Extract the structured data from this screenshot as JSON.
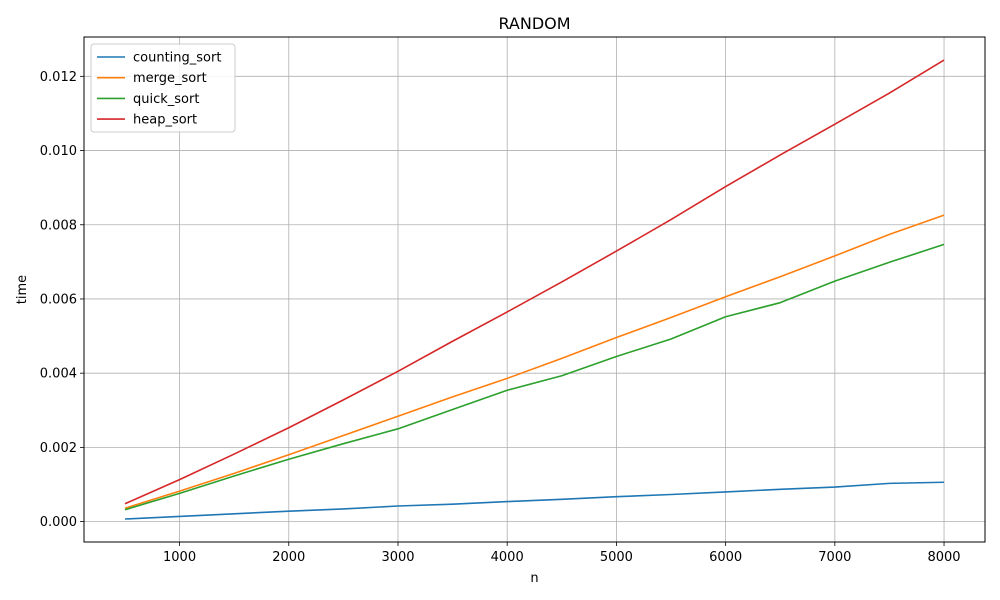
{
  "chart_data": {
    "type": "line",
    "title": "RANDOM",
    "xlabel": "n",
    "ylabel": "time",
    "xlim": [
      125,
      8375
    ],
    "ylim": [
      -0.00055,
      0.01306
    ],
    "xticks": [
      "1000",
      "2000",
      "3000",
      "4000",
      "5000",
      "6000",
      "7000",
      "8000"
    ],
    "yticks": [
      "0.000",
      "0.002",
      "0.004",
      "0.006",
      "0.008",
      "0.010",
      "0.012"
    ],
    "grid": true,
    "legend_position": "top-left",
    "x": [
      500,
      1000,
      1500,
      2000,
      2500,
      3000,
      3500,
      4000,
      4500,
      5000,
      5500,
      6000,
      6500,
      7000,
      7500,
      8000
    ],
    "series": [
      {
        "name": "counting_sort",
        "color": "#1f77b4",
        "values": [
          7e-05,
          0.00014,
          0.00021,
          0.00028,
          0.00034,
          0.00042,
          0.00047,
          0.00054,
          0.0006,
          0.00067,
          0.00073,
          0.0008,
          0.00087,
          0.00093,
          0.00103,
          0.00106
        ]
      },
      {
        "name": "merge_sort",
        "color": "#ff7f0e",
        "values": [
          0.00036,
          0.00082,
          0.0013,
          0.0018,
          0.00232,
          0.00284,
          0.00336,
          0.00386,
          0.0044,
          0.00496,
          0.0055,
          0.00606,
          0.0066,
          0.00716,
          0.00774,
          0.00826
        ]
      },
      {
        "name": "quick_sort",
        "color": "#2ca02c",
        "values": [
          0.00032,
          0.00076,
          0.00123,
          0.00168,
          0.0021,
          0.0025,
          0.00302,
          0.00354,
          0.00393,
          0.00445,
          0.00492,
          0.00552,
          0.0059,
          0.00648,
          0.00699,
          0.00747
        ]
      },
      {
        "name": "heap_sort",
        "color": "#d62728",
        "values": [
          0.00048,
          0.00113,
          0.00182,
          0.00253,
          0.00328,
          0.00405,
          0.00486,
          0.00565,
          0.00646,
          0.00729,
          0.00814,
          0.00903,
          0.00988,
          0.01071,
          0.01155,
          0.01244
        ]
      }
    ]
  }
}
